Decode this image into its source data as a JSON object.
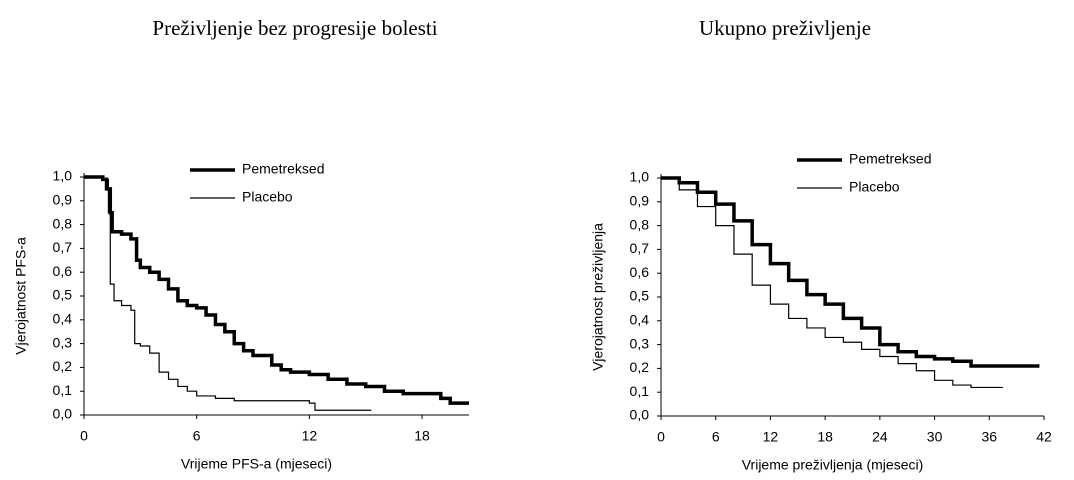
{
  "chart_data": [
    {
      "type": "line",
      "title": "Preživljenje bez progresije bolesti",
      "x_label": "Vrijeme PFS-a (mjeseci)",
      "y_label": "Vjerojatnost PFS-a",
      "xlim": [
        0,
        20.5
      ],
      "ylim": [
        0,
        1
      ],
      "xticks": [
        0,
        6,
        12,
        18
      ],
      "yticks": [
        {
          "value": 0,
          "label": "0,0"
        },
        {
          "value": 0.1,
          "label": "0,1"
        },
        {
          "value": 0.2,
          "label": "0,2"
        },
        {
          "value": 0.3,
          "label": "0,3"
        },
        {
          "value": 0.4,
          "label": "0,4"
        },
        {
          "value": 0.5,
          "label": "0,5"
        },
        {
          "value": 0.6,
          "label": "0,6"
        },
        {
          "value": 0.7,
          "label": "0,7"
        },
        {
          "value": 0.8,
          "label": "0,8"
        },
        {
          "value": 0.9,
          "label": "0,9"
        },
        {
          "value": 1,
          "label": "1,0"
        }
      ],
      "series": [
        {
          "name": "Pemetreksed",
          "color": "#000000",
          "linewidth": 3.5,
          "x": [
            0,
            0.5,
            1,
            1.2,
            1.4,
            1.5,
            2,
            2.5,
            2.8,
            3,
            3.5,
            4,
            4.5,
            5,
            5.5,
            6,
            6.5,
            7,
            7.5,
            8,
            8.5,
            9,
            10,
            10.5,
            11,
            12,
            13,
            14,
            15,
            16,
            17,
            18,
            19,
            19.5,
            20.5
          ],
          "values": [
            1.0,
            1.0,
            0.99,
            0.95,
            0.85,
            0.77,
            0.76,
            0.74,
            0.65,
            0.62,
            0.6,
            0.57,
            0.53,
            0.48,
            0.46,
            0.45,
            0.42,
            0.38,
            0.35,
            0.3,
            0.27,
            0.25,
            0.21,
            0.19,
            0.18,
            0.17,
            0.15,
            0.13,
            0.12,
            0.1,
            0.09,
            0.09,
            0.07,
            0.05,
            0.05
          ]
        },
        {
          "name": "Placebo",
          "color": "#000000",
          "linewidth": 1.2,
          "x": [
            0,
            1,
            1.3,
            1.4,
            1.6,
            2,
            2.5,
            2.7,
            3,
            3.5,
            4,
            4.5,
            5,
            5.5,
            6,
            7,
            8,
            12,
            12.3,
            15.3
          ],
          "values": [
            1.0,
            0.99,
            0.85,
            0.55,
            0.48,
            0.46,
            0.44,
            0.3,
            0.29,
            0.26,
            0.18,
            0.15,
            0.12,
            0.1,
            0.08,
            0.07,
            0.06,
            0.05,
            0.02,
            0.02
          ]
        }
      ]
    },
    {
      "type": "line",
      "title": "Ukupno preživljenje",
      "x_label": "Vrijeme preživljenja (mjeseci)",
      "y_label": "Vjerojatnost preživljenja",
      "xlim": [
        0,
        42
      ],
      "ylim": [
        0,
        1
      ],
      "xticks": [
        0,
        6,
        12,
        18,
        24,
        30,
        36,
        42
      ],
      "yticks": [
        {
          "value": 0,
          "label": "0,0"
        },
        {
          "value": 0.1,
          "label": "0,1"
        },
        {
          "value": 0.2,
          "label": "0,2"
        },
        {
          "value": 0.3,
          "label": "0,3"
        },
        {
          "value": 0.4,
          "label": "0,4"
        },
        {
          "value": 0.5,
          "label": "0,5"
        },
        {
          "value": 0.6,
          "label": "0,6"
        },
        {
          "value": 0.7,
          "label": "0,7"
        },
        {
          "value": 0.8,
          "label": "0,8"
        },
        {
          "value": 0.9,
          "label": "0,9"
        },
        {
          "value": 1,
          "label": "1,0"
        }
      ],
      "series": [
        {
          "name": "Pemetreksed",
          "color": "#000000",
          "linewidth": 3.5,
          "x": [
            0,
            2,
            4,
            6,
            8,
            10,
            12,
            14,
            16,
            18,
            20,
            22,
            24,
            26,
            28,
            30,
            32,
            34,
            36,
            41.5
          ],
          "values": [
            1.0,
            0.98,
            0.94,
            0.89,
            0.82,
            0.72,
            0.64,
            0.57,
            0.51,
            0.47,
            0.41,
            0.37,
            0.3,
            0.27,
            0.25,
            0.24,
            0.23,
            0.21,
            0.21,
            0.21
          ]
        },
        {
          "name": "Placebo",
          "color": "#000000",
          "linewidth": 1.2,
          "x": [
            0,
            2,
            4,
            6,
            8,
            10,
            12,
            14,
            16,
            18,
            20,
            22,
            24,
            26,
            28,
            30,
            32,
            34,
            37.5
          ],
          "values": [
            1.0,
            0.95,
            0.88,
            0.8,
            0.68,
            0.55,
            0.47,
            0.41,
            0.37,
            0.33,
            0.31,
            0.28,
            0.25,
            0.22,
            0.19,
            0.15,
            0.13,
            0.12,
            0.12
          ]
        }
      ]
    }
  ]
}
